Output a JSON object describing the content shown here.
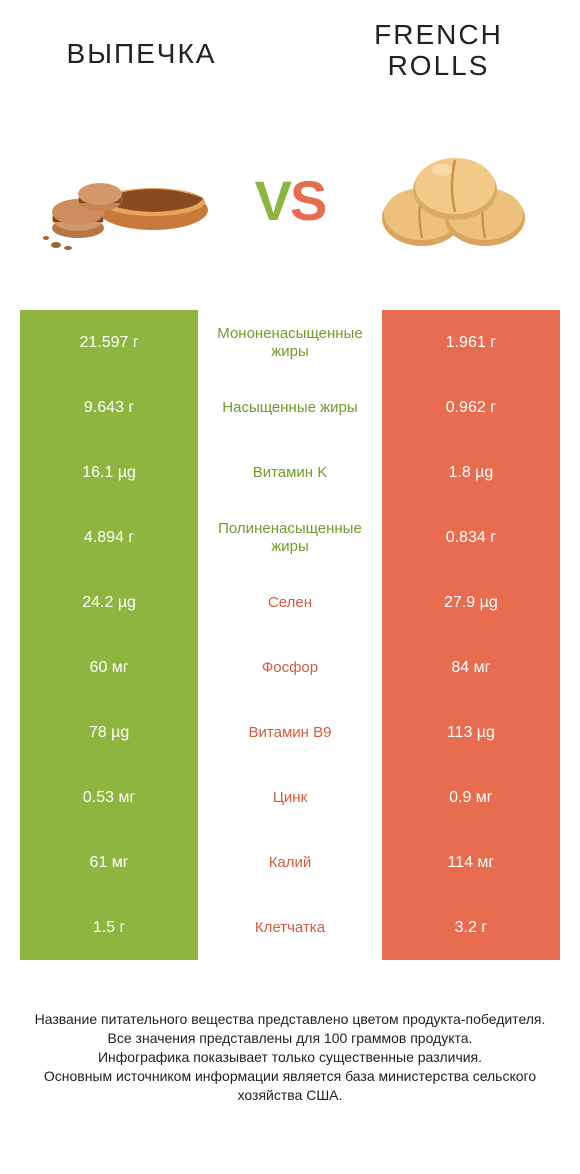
{
  "header": {
    "left_title": "ВЫПЕЧКА",
    "right_title_line1": "FRENCH",
    "right_title_line2": "ROLLS",
    "vs_text": "VS"
  },
  "colors": {
    "green": "#8eb53f",
    "orange": "#e76c50",
    "green_text": "#739b2a",
    "orange_text": "#d85a3f",
    "vs_v": "#8eb53f",
    "vs_s": "#e76c50"
  },
  "rows": [
    {
      "left": "21.597 г",
      "mid": "Мононенасыщенные жиры",
      "right": "1.961 г",
      "winner": "left"
    },
    {
      "left": "9.643 г",
      "mid": "Насыщенные жиры",
      "right": "0.962 г",
      "winner": "left"
    },
    {
      "left": "16.1 µg",
      "mid": "Витамин K",
      "right": "1.8 µg",
      "winner": "left"
    },
    {
      "left": "4.894 г",
      "mid": "Полиненасыщенные жиры",
      "right": "0.834 г",
      "winner": "left"
    },
    {
      "left": "24.2 µg",
      "mid": "Селен",
      "right": "27.9 µg",
      "winner": "right"
    },
    {
      "left": "60 мг",
      "mid": "Фосфор",
      "right": "84 мг",
      "winner": "right"
    },
    {
      "left": "78 µg",
      "mid": "Витамин B9",
      "right": "113 µg",
      "winner": "right"
    },
    {
      "left": "0.53 мг",
      "mid": "Цинк",
      "right": "0.9 мг",
      "winner": "right"
    },
    {
      "left": "61 мг",
      "mid": "Калий",
      "right": "114 мг",
      "winner": "right"
    },
    {
      "left": "1.5 г",
      "mid": "Клетчатка",
      "right": "3.2 г",
      "winner": "right"
    }
  ],
  "footnote": {
    "line1": "Название питательного вещества представлено цветом продукта-победителя.",
    "line2": "Все значения представлены для 100 граммов продукта.",
    "line3": "Инфографика показывает только существенные различия.",
    "line4": "Основным источником информации является база министерства сельского хозяйства США."
  }
}
